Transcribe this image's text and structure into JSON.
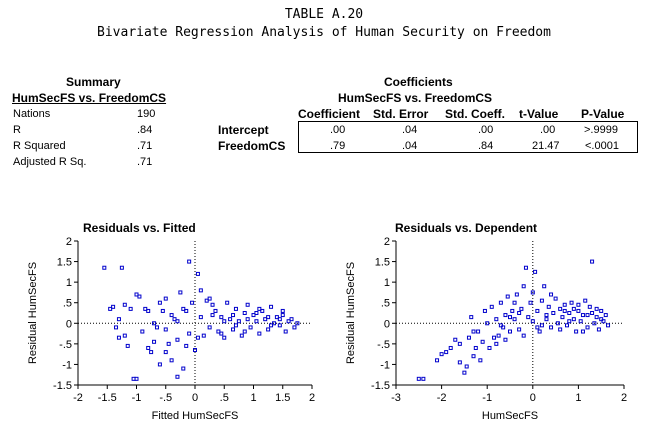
{
  "title": "TABLE A.20",
  "subtitle": "Bivariate Regression Analysis of Human Security on Freedom",
  "summary": {
    "heading": "Summary",
    "subheading": "HumSecFS vs. FreedomCS",
    "rows": [
      {
        "label": "Nations",
        "value": "190"
      },
      {
        "label": "R",
        "value": ".84"
      },
      {
        "label": "R Squared",
        "value": ".71"
      },
      {
        "label": "Adjusted R Sq.",
        "value": ".71"
      }
    ]
  },
  "coefficients": {
    "heading": "Coefficients",
    "subheading": "HumSecFS vs. FreedomCS",
    "columns": [
      "Coefficient",
      "Std. Error",
      "Std. Coeff.",
      "t-Value",
      "P-Value"
    ],
    "rows": [
      {
        "label": "Intercept",
        "values": [
          ".00",
          ".04",
          ".00",
          ".00",
          ">.9999"
        ]
      },
      {
        "label": "FreedomCS",
        "values": [
          ".79",
          ".04",
          ".84",
          "21.47",
          "<.0001"
        ]
      }
    ]
  },
  "chart_data": [
    {
      "type": "scatter",
      "title": "Residuals vs. Fitted",
      "xlabel": "Fitted HumSecFS",
      "ylabel": "Residual HumSecFS",
      "xlim": [
        -2,
        2
      ],
      "ylim": [
        -1.5,
        2
      ],
      "xticks": [
        "-2",
        "-1.5",
        "-1",
        "-.5",
        "0",
        ".5",
        "1",
        "1.5",
        "2"
      ],
      "yticks": [
        "-1.5",
        "-1",
        "-.5",
        "0",
        ".5",
        "1",
        "1.5",
        "2"
      ],
      "color": "#0000cc",
      "points": [
        [
          -1.55,
          1.35
        ],
        [
          -1.45,
          0.35
        ],
        [
          -1.4,
          0.4
        ],
        [
          -1.35,
          -0.1
        ],
        [
          -1.3,
          0.1
        ],
        [
          -1.3,
          -0.35
        ],
        [
          -1.25,
          1.35
        ],
        [
          -1.2,
          0.45
        ],
        [
          -1.15,
          -0.55
        ],
        [
          -1.1,
          0.35
        ],
        [
          -1.05,
          -1.35
        ],
        [
          -1.0,
          -1.35
        ],
        [
          -0.95,
          0.65
        ],
        [
          -0.9,
          -0.2
        ],
        [
          -0.85,
          0.35
        ],
        [
          -0.8,
          -0.6
        ],
        [
          -0.75,
          -0.7
        ],
        [
          -0.7,
          0.0
        ],
        [
          -0.65,
          -0.1
        ],
        [
          -0.6,
          -1.0
        ],
        [
          -0.55,
          0.3
        ],
        [
          -0.5,
          0.6
        ],
        [
          -0.5,
          -0.15
        ],
        [
          -0.45,
          -0.5
        ],
        [
          -0.4,
          -0.9
        ],
        [
          -0.35,
          0.1
        ],
        [
          -0.3,
          -0.4
        ],
        [
          -0.3,
          -1.3
        ],
        [
          -0.25,
          0.75
        ],
        [
          -0.2,
          -1.1
        ],
        [
          -0.15,
          0.3
        ],
        [
          -0.1,
          -0.25
        ],
        [
          -0.1,
          1.5
        ],
        [
          -0.05,
          0.5
        ],
        [
          0.0,
          -0.65
        ],
        [
          0.05,
          1.2
        ],
        [
          0.1,
          0.15
        ],
        [
          0.15,
          -0.3
        ],
        [
          0.2,
          0.55
        ],
        [
          0.25,
          -0.1
        ],
        [
          0.3,
          0.2
        ],
        [
          0.35,
          0.3
        ],
        [
          0.4,
          -0.2
        ],
        [
          0.45,
          0.15
        ],
        [
          0.5,
          -0.35
        ],
        [
          0.55,
          0.5
        ],
        [
          0.6,
          0.1
        ],
        [
          0.65,
          -0.15
        ],
        [
          0.7,
          0.35
        ],
        [
          0.75,
          0.05
        ],
        [
          0.8,
          -0.3
        ],
        [
          0.85,
          0.25
        ],
        [
          0.9,
          0.45
        ],
        [
          0.95,
          -0.1
        ],
        [
          1.0,
          0.2
        ],
        [
          1.05,
          0.05
        ],
        [
          1.1,
          -0.25
        ],
        [
          1.15,
          0.3
        ],
        [
          1.2,
          0.1
        ],
        [
          1.25,
          -0.15
        ],
        [
          1.3,
          0.4
        ],
        [
          1.35,
          0.0
        ],
        [
          1.4,
          0.15
        ],
        [
          1.45,
          -0.05
        ],
        [
          1.5,
          0.2
        ],
        [
          1.55,
          -0.2
        ],
        [
          1.6,
          0.05
        ],
        [
          1.65,
          0.1
        ],
        [
          1.7,
          -0.1
        ],
        [
          1.75,
          0.0
        ],
        [
          -1.2,
          -0.3
        ],
        [
          -1.0,
          0.7
        ],
        [
          -0.8,
          0.3
        ],
        [
          -0.6,
          0.5
        ],
        [
          -0.4,
          0.2
        ],
        [
          -0.2,
          0.35
        ],
        [
          0.1,
          0.8
        ],
        [
          0.3,
          0.45
        ],
        [
          0.5,
          0.05
        ],
        [
          0.7,
          -0.05
        ],
        [
          0.9,
          0.1
        ],
        [
          1.1,
          0.35
        ],
        [
          1.3,
          -0.05
        ],
        [
          1.5,
          0.3
        ],
        [
          -0.7,
          -0.45
        ],
        [
          -0.5,
          -0.7
        ],
        [
          -0.3,
          0.05
        ],
        [
          -0.15,
          -0.55
        ],
        [
          0.05,
          -0.35
        ],
        [
          0.25,
          0.6
        ],
        [
          0.45,
          -0.25
        ],
        [
          0.65,
          0.2
        ],
        [
          0.85,
          -0.2
        ],
        [
          1.05,
          0.25
        ],
        [
          1.25,
          0.15
        ],
        [
          1.45,
          0.1
        ]
      ]
    },
    {
      "type": "scatter",
      "title": "Residuals vs. Dependent",
      "xlabel": "HumSecFS",
      "ylabel": "Residual HumSecFS",
      "xlim": [
        -3,
        2
      ],
      "ylim": [
        -1.5,
        2
      ],
      "xticks": [
        "-3",
        "-2",
        "-1",
        "0",
        "1",
        "2"
      ],
      "yticks": [
        "-1.5",
        "-1",
        "-.5",
        "0",
        ".5",
        "1",
        "1.5",
        "2"
      ],
      "color": "#0000cc",
      "points": [
        [
          -2.5,
          -1.35
        ],
        [
          -2.4,
          -1.35
        ],
        [
          -2.1,
          -0.9
        ],
        [
          -2.0,
          -0.75
        ],
        [
          -1.9,
          -0.7
        ],
        [
          -1.8,
          -0.6
        ],
        [
          -1.7,
          -0.4
        ],
        [
          -1.6,
          -0.95
        ],
        [
          -1.5,
          -1.2
        ],
        [
          -1.45,
          -1.05
        ],
        [
          -1.4,
          -0.35
        ],
        [
          -1.3,
          -0.8
        ],
        [
          -1.25,
          -0.6
        ],
        [
          -1.2,
          -0.2
        ],
        [
          -1.1,
          -0.45
        ],
        [
          -1.05,
          0.3
        ],
        [
          -1.0,
          0.0
        ],
        [
          -0.95,
          -0.6
        ],
        [
          -0.9,
          0.4
        ],
        [
          -0.85,
          -0.35
        ],
        [
          -0.8,
          0.1
        ],
        [
          -0.75,
          -0.3
        ],
        [
          -0.7,
          0.5
        ],
        [
          -0.65,
          -0.1
        ],
        [
          -0.6,
          0.2
        ],
        [
          -0.55,
          0.65
        ],
        [
          -0.5,
          -0.2
        ],
        [
          -0.45,
          0.3
        ],
        [
          -0.4,
          0.1
        ],
        [
          -0.35,
          0.7
        ],
        [
          -0.3,
          -0.15
        ],
        [
          -0.25,
          0.35
        ],
        [
          -0.2,
          0.9
        ],
        [
          -0.15,
          1.35
        ],
        [
          -0.1,
          0.15
        ],
        [
          -0.05,
          0.5
        ],
        [
          0.0,
          0.05
        ],
        [
          0.05,
          1.25
        ],
        [
          0.1,
          0.3
        ],
        [
          0.15,
          -0.2
        ],
        [
          0.2,
          0.55
        ],
        [
          0.25,
          0.9
        ],
        [
          0.3,
          0.1
        ],
        [
          0.35,
          0.4
        ],
        [
          0.4,
          -0.1
        ],
        [
          0.45,
          0.25
        ],
        [
          0.5,
          0.6
        ],
        [
          0.55,
          0.0
        ],
        [
          0.6,
          0.35
        ],
        [
          0.65,
          0.15
        ],
        [
          0.7,
          0.45
        ],
        [
          0.75,
          -0.05
        ],
        [
          0.8,
          0.25
        ],
        [
          0.85,
          0.5
        ],
        [
          0.9,
          0.1
        ],
        [
          0.95,
          -0.2
        ],
        [
          1.0,
          0.3
        ],
        [
          1.05,
          0.05
        ],
        [
          1.1,
          0.2
        ],
        [
          1.15,
          0.55
        ],
        [
          1.2,
          -0.1
        ],
        [
          1.25,
          0.4
        ],
        [
          1.3,
          1.5
        ],
        [
          1.35,
          0.0
        ],
        [
          1.4,
          0.15
        ],
        [
          1.45,
          -0.15
        ],
        [
          1.5,
          0.3
        ],
        [
          1.55,
          0.05
        ],
        [
          1.6,
          0.2
        ],
        [
          1.65,
          -0.05
        ],
        [
          -0.8,
          -0.5
        ],
        [
          -0.6,
          -0.4
        ],
        [
          -0.4,
          0.5
        ],
        [
          -0.2,
          -0.3
        ],
        [
          0.0,
          0.75
        ],
        [
          0.2,
          -0.05
        ],
        [
          0.4,
          0.7
        ],
        [
          0.6,
          -0.15
        ],
        [
          0.8,
          0.05
        ],
        [
          1.0,
          0.45
        ],
        [
          1.2,
          0.2
        ],
        [
          1.4,
          0.35
        ],
        [
          -1.6,
          -0.5
        ],
        [
          -1.3,
          -0.2
        ],
        [
          -0.5,
          0.15
        ],
        [
          0.3,
          0.2
        ],
        [
          0.7,
          0.3
        ],
        [
          1.1,
          -0.2
        ],
        [
          1.5,
          0.1
        ],
        [
          1.3,
          0.25
        ],
        [
          0.9,
          0.35
        ],
        [
          0.1,
          -0.1
        ],
        [
          -0.3,
          0.25
        ],
        [
          -0.7,
          -0.05
        ],
        [
          -1.15,
          -0.9
        ],
        [
          -1.35,
          0.15
        ]
      ]
    }
  ]
}
